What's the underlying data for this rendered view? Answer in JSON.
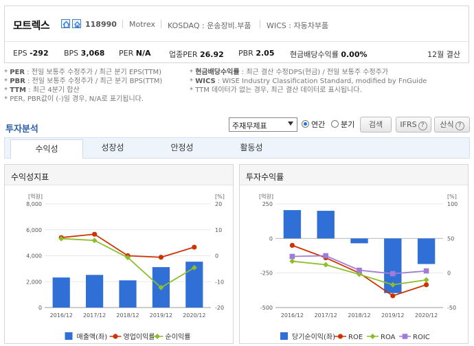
{
  "company": {
    "name": "모트렉스",
    "code": "118990",
    "english_name": "Motrex",
    "market": "KOSDAQ : 운송장비.부품",
    "wics": "WICS : 자동차부품",
    "icons": [
      "home-icon",
      "homepage-icon"
    ]
  },
  "metrics": [
    {
      "label": "EPS",
      "value": "-292"
    },
    {
      "label": "BPS",
      "value": "3,068"
    },
    {
      "label": "PER",
      "value": "N/A"
    },
    {
      "label": "업종PER",
      "value": "26.92"
    },
    {
      "label": "PBR",
      "value": "2.05"
    },
    {
      "label": "현금배당수익률",
      "value": "0.00%"
    }
  ],
  "fiscal": "12월 결산",
  "notes_left": [
    {
      "key": "PER",
      "text": ": 전일 보통주 수정주가 / 최근 분기 EPS(TTM)"
    },
    {
      "key": "PBR",
      "text": ": 전일 보통주 수정주가 / 최근 분기 BPS(TTM)"
    },
    {
      "key": "TTM",
      "text": ": 최근 4분기 합산"
    },
    {
      "key": "",
      "text": "PER, PBR값이 (-)일 경우, N/A로 표기됩니다."
    }
  ],
  "notes_right": [
    {
      "key": "현금배당수익률",
      "text": ": 최근 결산 수정DPS(현금) / 전일 보통주 수정주가"
    },
    {
      "key": "WICS",
      "text": ": WISE Industry Classification Standard, modified by FnGuide"
    },
    {
      "key": "",
      "text": "TTM 데이터가 없는 경우, 최근 결산 데이터로 표시됩니다."
    }
  ],
  "section_title": "투자분석",
  "controls": {
    "select_value": "주재무제표",
    "radio_annual": "연간",
    "radio_quarter": "분기",
    "search_button": "검색",
    "ifrs_button": "IFRS",
    "formula_button": "산식",
    "help_glyph": "?"
  },
  "tabs": [
    "수익성",
    "성장성",
    "안정성",
    "활동성"
  ],
  "colors": {
    "bar": "#2f6fd6",
    "red": "#cc3300",
    "green": "#8cbe2b",
    "purple": "#a07cd8",
    "title_blue": "#2a5fa8"
  },
  "chart_data": [
    {
      "type": "bar",
      "title": "수익성지표",
      "categories": [
        "2016/12",
        "2017/12",
        "2018/12",
        "2019/12",
        "2020/12"
      ],
      "y_left_unit": "[억원]",
      "y_right_unit": "[%]",
      "ylim_left": [
        0,
        8000
      ],
      "ylim_right": [
        -20,
        20
      ],
      "y_left_ticks": [
        "0",
        "2,000",
        "4,000",
        "6,000",
        "8,000"
      ],
      "y_right_ticks": [
        "-20",
        "-10",
        "0",
        "10",
        "20"
      ],
      "series": [
        {
          "name": "매출액(좌)",
          "kind": "bar",
          "axis": "left",
          "values": [
            2320,
            2520,
            2100,
            3120,
            3540
          ]
        },
        {
          "name": "영업이익률",
          "kind": "line",
          "axis": "right",
          "values": [
            7.0,
            8.3,
            0.0,
            -0.6,
            3.3
          ]
        },
        {
          "name": "순이익률",
          "kind": "line",
          "axis": "right",
          "values": [
            6.6,
            5.9,
            -0.7,
            -12.3,
            -4.6
          ]
        }
      ],
      "legend": "bottom"
    },
    {
      "type": "bar",
      "title": "투자수익률",
      "categories": [
        "2016/12",
        "2017/12",
        "2018/12",
        "2019/12",
        "2020/12"
      ],
      "y_left_unit": "[억원]",
      "y_right_unit": "[%]",
      "ylim_left": [
        -500,
        250
      ],
      "ylim_right": [
        -50,
        100
      ],
      "y_left_ticks": [
        "-500",
        "-250",
        "0",
        "250"
      ],
      "y_right_ticks": [
        "-50",
        "0",
        "50",
        "100"
      ],
      "series": [
        {
          "name": "당기순이익(좌)",
          "kind": "bar",
          "axis": "left",
          "values": [
            205,
            200,
            -35,
            -395,
            -185
          ]
        },
        {
          "name": "ROE",
          "kind": "line",
          "axis": "right",
          "values": [
            40,
            22,
            0,
            -33,
            -17
          ]
        },
        {
          "name": "ROA",
          "kind": "line",
          "axis": "right",
          "values": [
            17,
            12,
            -2,
            -17,
            -10
          ]
        },
        {
          "name": "ROIC",
          "kind": "line",
          "axis": "right",
          "values": [
            24,
            25,
            4,
            -1,
            3
          ]
        }
      ],
      "legend": "bottom"
    }
  ]
}
